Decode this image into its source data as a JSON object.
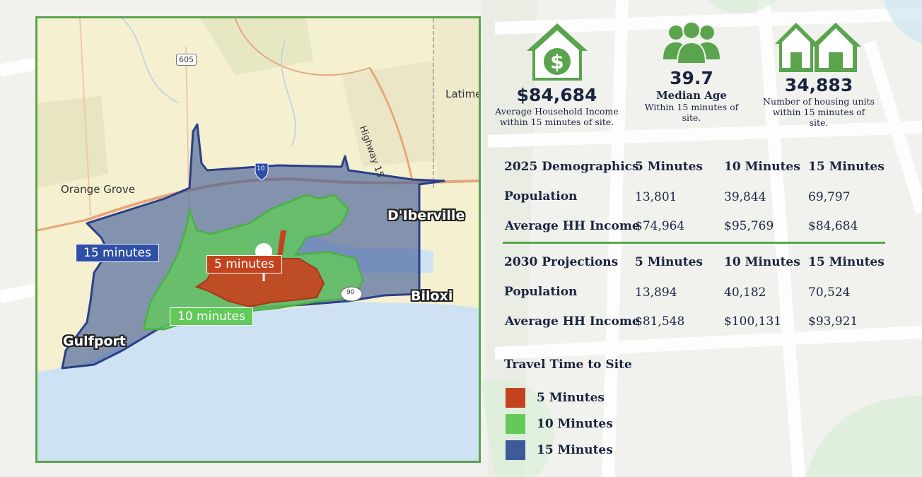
{
  "colors": {
    "green": "#5aa44d",
    "red": "#c5421e",
    "blue": "#3d5a99",
    "navy": "#1a2440",
    "lime": "#62c95a"
  },
  "map": {
    "road_shield": "605",
    "highway_label": "Highway 15",
    "interstate": "10",
    "us_route": "90",
    "place_labels": {
      "orange_grove": "Orange Grove",
      "latimer": "Latime",
      "diberville": "D'Iberville",
      "biloxi": "Biloxi",
      "gulfport": "Gulfport"
    },
    "zone_labels": {
      "fifteen": "15 minutes",
      "five": "5 minutes",
      "ten": "10 minutes"
    },
    "icons": [
      "location-pin-icon"
    ]
  },
  "stats": [
    {
      "icon": "house-dollar-icon",
      "value": "$84,684",
      "label": "",
      "sub": "Average Household Income within 15 minutes of site."
    },
    {
      "icon": "people-icon",
      "value": "39.7",
      "label": "Median Age",
      "sub": "Within 15 minutes of site."
    },
    {
      "icon": "houses-icon",
      "value": "34,883",
      "label": "",
      "sub": "Number of housing units within 15 minutes of site."
    }
  ],
  "demographics_2025": {
    "header": [
      "2025 Demographics",
      "5 Minutes",
      "10 Minutes",
      "15 Minutes"
    ],
    "rows": [
      [
        "Population",
        "13,801",
        "39,844",
        "69,797"
      ],
      [
        "Average HH Income",
        "$74,964",
        "$95,769",
        "$84,684"
      ]
    ]
  },
  "projections_2030": {
    "header": [
      "2030 Projections",
      "5 Minutes",
      "10 Minutes",
      "15 Minutes"
    ],
    "rows": [
      [
        "Population",
        "13,894",
        "40,182",
        "70,524"
      ],
      [
        "Average HH Income",
        "$81,548",
        "$100,131",
        "$93,921"
      ]
    ]
  },
  "legend": {
    "title": "Travel Time to Site",
    "items": [
      {
        "label": "5 Minutes",
        "color": "#c5421e"
      },
      {
        "label": "10 Minutes",
        "color": "#62c95a"
      },
      {
        "label": "15 Minutes",
        "color": "#3d5a99"
      }
    ]
  }
}
